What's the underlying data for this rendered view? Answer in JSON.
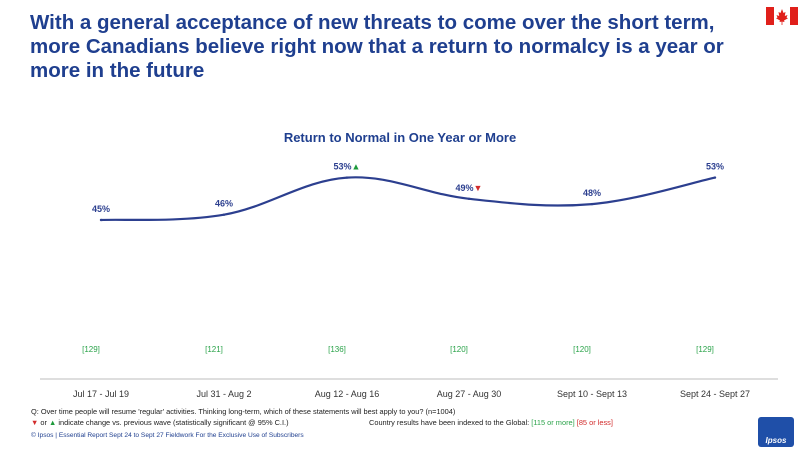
{
  "headline": "With a general acceptance of new threats to come over the short term, more Canadians believe right now that a return to normalcy is a year or more in the future",
  "flag_icon": "canada-flag-icon",
  "colors": {
    "line": "#2c3f8f",
    "up": "#1e9a3b",
    "down": "#d22b2b",
    "base": "#2ba34a",
    "title": "#1f3f8f"
  },
  "chart_data": {
    "type": "line",
    "title": "Return to Normal in One Year or More",
    "categories": [
      "Jul 17 - Jul 19",
      "Jul 31 - Aug 2",
      "Aug 12 - Aug 16",
      "Aug 27 - Aug 30",
      "Sept 10 - Sept 13",
      "Sept 24 - Sept 27"
    ],
    "values": [
      45,
      46,
      53,
      49,
      48,
      53
    ],
    "data_labels": [
      "45%",
      "46%",
      "53%",
      "49%",
      "48%",
      "53%"
    ],
    "change_markers": [
      "",
      "",
      "up",
      "down",
      "",
      ""
    ],
    "bases": [
      "[129]",
      "[121]",
      "[136]",
      "[120]",
      "[120]",
      "[129]"
    ],
    "ylim": [
      20,
      60
    ]
  },
  "footnotes": {
    "question": "Q: Over time people will resume 'regular' activities. Thinking long-term, which of these statements will best apply to you? (n=1004)",
    "legend_down": "▼",
    "legend_or": " or ",
    "legend_up": "▲",
    "legend_text": " indicate change vs. previous wave (statistically significant @ 95% C.I.)",
    "indexed_text": "Country results have been indexed to the Global: ",
    "indexed_high": "[115 or more]",
    "indexed_low": "[85 or less]"
  },
  "copyright": "© Ipsos  |  Essential Report   Sept 24 to Sept 27 Fieldwork  For the Exclusive Use of Subscribers",
  "logo": "Ipsos"
}
